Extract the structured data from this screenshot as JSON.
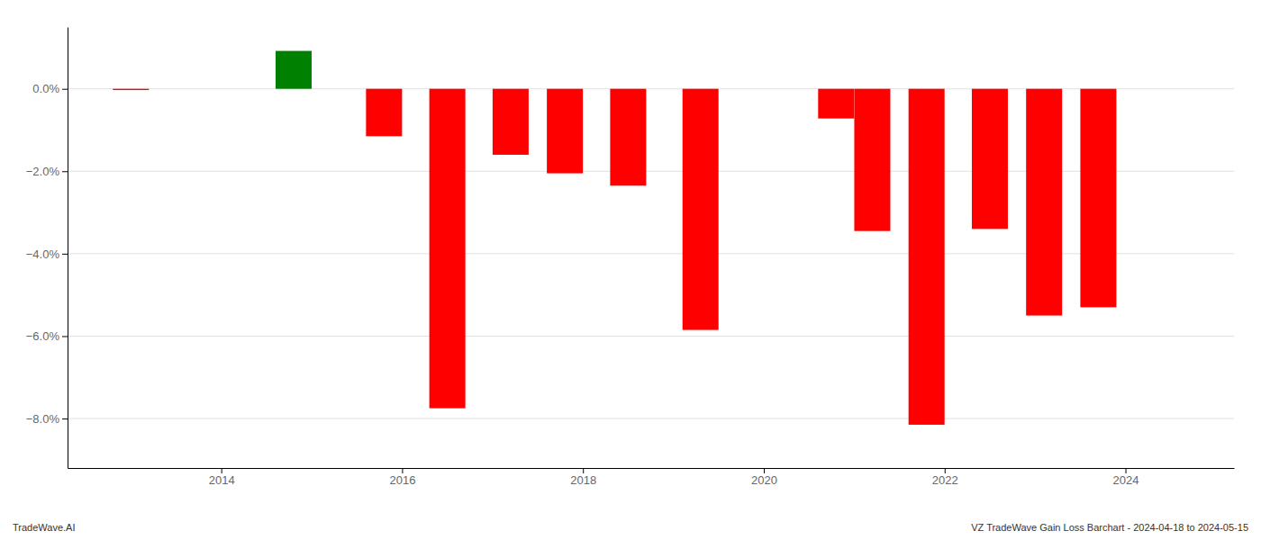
{
  "chart_data": {
    "type": "bar",
    "x": [
      2013.0,
      2014.8,
      2015.8,
      2016.5,
      2017.2,
      2017.8,
      2018.5,
      2019.3,
      2020.8,
      2021.2,
      2021.8,
      2022.5,
      2023.1,
      2023.7
    ],
    "values": [
      -0.03,
      0.92,
      -1.15,
      -7.75,
      -1.6,
      -2.05,
      -2.35,
      -5.85,
      -0.72,
      -3.45,
      -8.15,
      -3.4,
      -5.5,
      -5.3
    ],
    "colors": [
      "#ff0000",
      "#008000",
      "#ff0000",
      "#ff0000",
      "#ff0000",
      "#ff0000",
      "#ff0000",
      "#ff0000",
      "#ff0000",
      "#ff0000",
      "#ff0000",
      "#ff0000",
      "#ff0000",
      "#ff0000"
    ],
    "xlim": [
      2012.3,
      2025.2
    ],
    "ylim": [
      -9.2,
      1.5
    ],
    "xticks": [
      2014,
      2016,
      2018,
      2020,
      2022,
      2024
    ],
    "yticks": [
      {
        "value": 0.0,
        "label": "0.0%"
      },
      {
        "value": -2.0,
        "label": "−2.0%"
      },
      {
        "value": -4.0,
        "label": "−4.0%"
      },
      {
        "value": -6.0,
        "label": "−6.0%"
      },
      {
        "value": -8.0,
        "label": "−8.0%"
      }
    ],
    "grid": true,
    "annotations": [
      "TradeWave.AI",
      "VZ TradeWave Gain Loss Barchart - 2024-04-18 to 2024-05-15"
    ]
  }
}
